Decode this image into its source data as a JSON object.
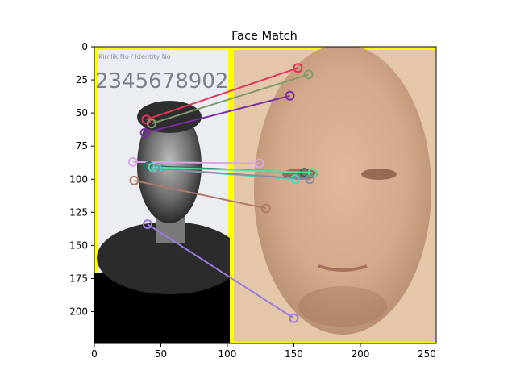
{
  "chart_data": {
    "type": "image-keypoint-match",
    "title": "Face Match",
    "xlabel": "",
    "ylabel": "",
    "xlim": [
      0,
      257
    ],
    "ylim": [
      224,
      0
    ],
    "x_ticks": [
      0,
      50,
      100,
      150,
      200,
      250
    ],
    "y_ticks": [
      0,
      25,
      50,
      75,
      100,
      125,
      150,
      175,
      200
    ],
    "grid": false,
    "images": [
      {
        "name": "id-card-photo",
        "x_range": [
          0,
          102
        ],
        "y_range": [
          0,
          170
        ],
        "description_colors": {
          "background": "#e9edf2",
          "border": "#ffff00"
        }
      },
      {
        "name": "face-closeup",
        "x_range": [
          102,
          257
        ],
        "y_range": [
          0,
          224
        ],
        "description_colors": {
          "background": "#e2bf9f",
          "border": "#ffff00"
        }
      }
    ],
    "matches": [
      {
        "color": "#e8325e",
        "from": [
          39,
          55
        ],
        "to": [
          153,
          16
        ]
      },
      {
        "color": "#7f9a6c",
        "from": [
          43,
          58
        ],
        "to": [
          161,
          21
        ]
      },
      {
        "color": "#7b2aa8",
        "from": [
          38,
          65
        ],
        "to": [
          147,
          37
        ]
      },
      {
        "color": "#d9a6e8",
        "from": [
          29,
          87
        ],
        "to": [
          124,
          88
        ]
      },
      {
        "color": "#1f6f6a",
        "from": [
          41,
          90
        ],
        "to": [
          158,
          95
        ]
      },
      {
        "color": "#5adfa0",
        "from": [
          44,
          91
        ],
        "to": [
          164,
          95
        ]
      },
      {
        "color": "#2ee6c8",
        "from": [
          47,
          92
        ],
        "to": [
          151,
          100
        ]
      },
      {
        "color": "#8a8aa0",
        "from": [
          46,
          92
        ],
        "to": [
          162,
          100
        ]
      },
      {
        "color": "#b07a6a",
        "from": [
          30,
          101
        ],
        "to": [
          129,
          122
        ]
      },
      {
        "color": "#9a7ae0",
        "from": [
          40,
          134
        ],
        "to": [
          150,
          205
        ]
      }
    ]
  }
}
